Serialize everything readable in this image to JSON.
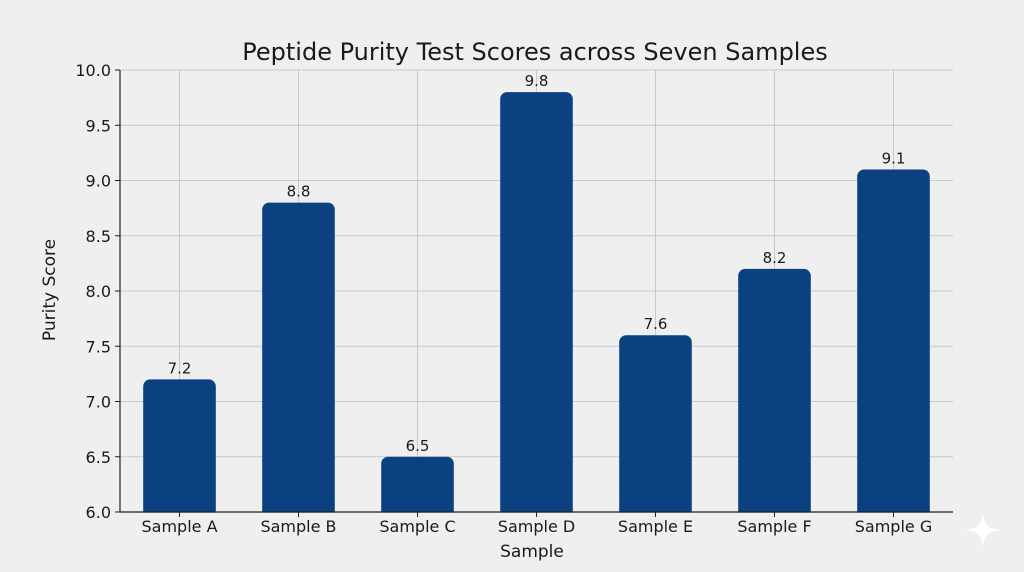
{
  "chart_data": {
    "type": "bar",
    "title": "Peptide Purity Test Scores across Seven Samples",
    "xlabel": "Sample",
    "ylabel": "Purity Score",
    "categories": [
      "Sample A",
      "Sample B",
      "Sample C",
      "Sample D",
      "Sample E",
      "Sample F",
      "Sample G"
    ],
    "values": [
      7.2,
      8.8,
      6.5,
      9.8,
      7.6,
      8.2,
      9.1
    ],
    "data_labels": [
      "7.2",
      "8.8",
      "6.5",
      "9.8",
      "7.6",
      "8.2",
      "9.1"
    ],
    "ylim": [
      6.0,
      10.0
    ],
    "yticks": [
      "6.0",
      "6.5",
      "7.0",
      "7.5",
      "8.0",
      "8.5",
      "9.0",
      "9.5",
      "10.0"
    ],
    "grid": true,
    "bar_color": "#0b4180"
  }
}
